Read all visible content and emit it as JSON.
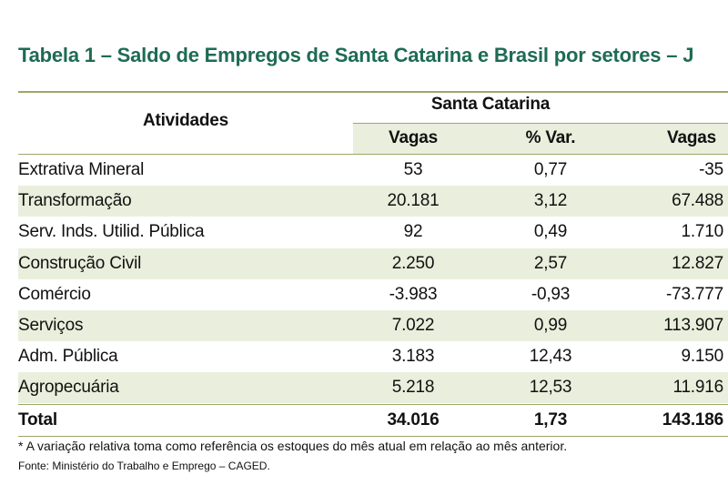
{
  "title": "Tabela 1 – Saldo de Empregos de Santa Catarina e Brasil por setores – J",
  "table": {
    "header": {
      "activities": "Atividades",
      "group": "Santa Catarina",
      "columns": [
        "Vagas",
        "% Var.",
        "Vagas"
      ]
    },
    "rows": [
      [
        "Extrativa Mineral",
        "53",
        "0,77",
        "-35"
      ],
      [
        "Transformação",
        "20.181",
        "3,12",
        "67.488"
      ],
      [
        "Serv. Inds. Utilid. Pública",
        "92",
        "0,49",
        "1.710"
      ],
      [
        "Construção Civil",
        "2.250",
        "2,57",
        "12.827"
      ],
      [
        "Comércio",
        "-3.983",
        "-0,93",
        "-73.777"
      ],
      [
        "Serviços",
        "7.022",
        "0,99",
        "113.907"
      ],
      [
        "Adm. Pública",
        "3.183",
        "12,43",
        "9.150"
      ],
      [
        "Agropecuária",
        "5.218",
        "12,53",
        "11.916"
      ]
    ],
    "total": [
      "Total",
      "34.016",
      "1,73",
      "143.186"
    ]
  },
  "notes": [
    "* A variação relativa toma como referência os estoques do mês atual em relação ao mês anterior.",
    "Fonte: Ministério do Trabalho e Emprego – CAGED."
  ]
}
